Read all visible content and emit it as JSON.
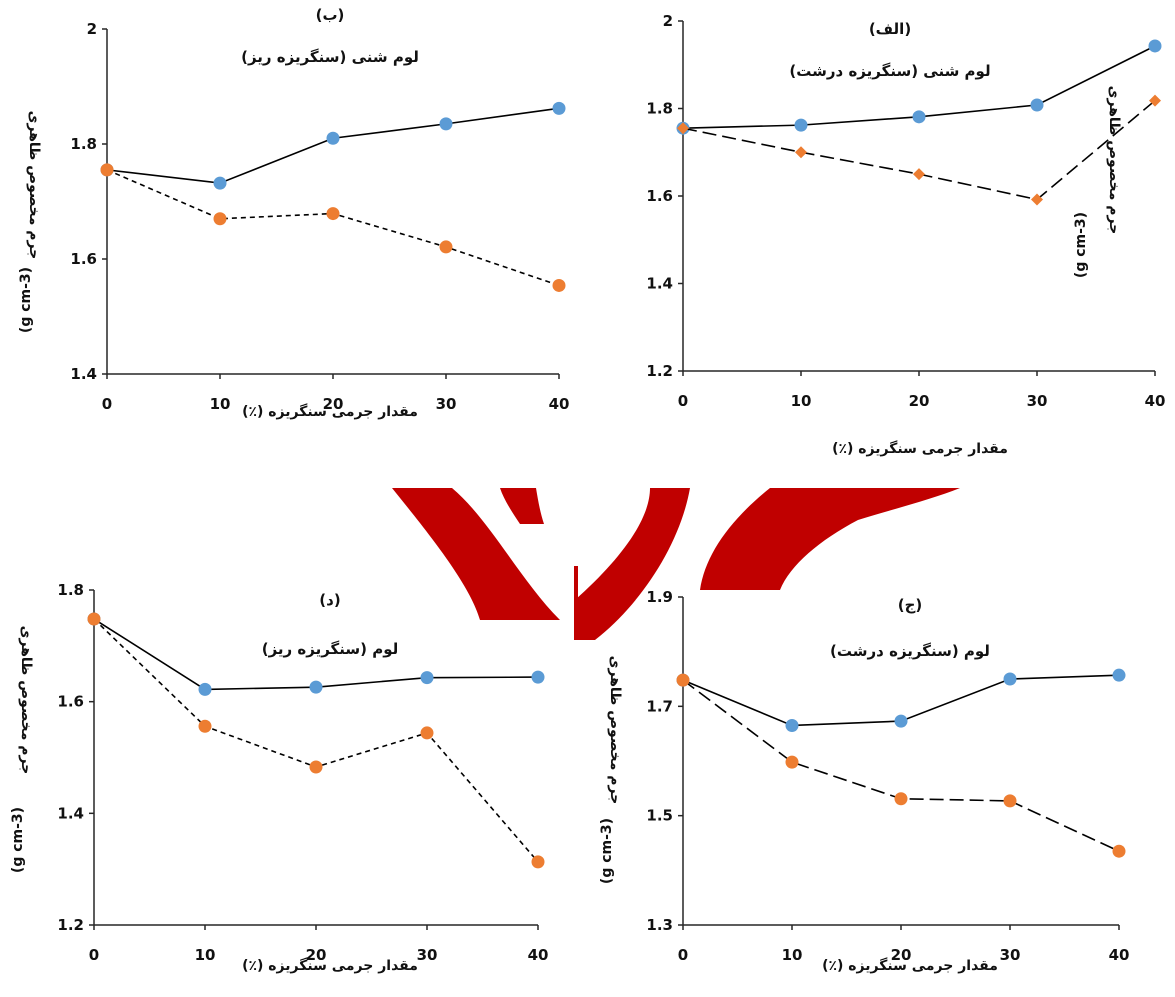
{
  "colors": {
    "solid_series": "#5B9BD5",
    "dashed_series": "#ED7D31",
    "axis": "#262626",
    "line": "#000000",
    "watermark": "#C00000"
  },
  "chart_data": [
    {
      "id": "alef",
      "type": "line",
      "label": "(الف)",
      "title": "لوم شنی (سنگریزه درشت)",
      "xlabel": "مقدار جرمی سنگریزه (٪)",
      "ylabel": "جرم مخصوص ظاهری",
      "ylabel_unit": "(g cm-3)",
      "x": [
        0,
        10,
        20,
        30,
        40
      ],
      "xlim": [
        0,
        40
      ],
      "ylim": [
        1.2,
        2.0
      ],
      "yticks": [
        1.2,
        1.4,
        1.6,
        1.8,
        2
      ],
      "ytick_labels": [
        "1.2",
        "1.4",
        "1.6",
        "1.8",
        "2"
      ],
      "series": [
        {
          "values": [
            1.755,
            1.762,
            1.781,
            1.808,
            1.943
          ],
          "line": "solid",
          "marker": "circle",
          "color": "#5B9BD5"
        },
        {
          "values": [
            1.755,
            1.7,
            1.65,
            1.592,
            1.818
          ],
          "line": "dashed",
          "marker": "diamond",
          "color": "#ED7D31"
        }
      ]
    },
    {
      "id": "be",
      "type": "line",
      "label": "(ب)",
      "title": "لوم شنی (سنگریزه ریز)",
      "xlabel": "مقدار جرمی سنگریزه (٪)",
      "ylabel": "جرم مخصوص ظاهری",
      "ylabel_unit": "(g cm-3)",
      "x": [
        0,
        10,
        20,
        30,
        40
      ],
      "xlim": [
        0,
        40
      ],
      "ylim": [
        1.4,
        2.0
      ],
      "yticks": [
        1.4,
        1.6,
        1.8,
        2
      ],
      "ytick_labels": [
        "1.4",
        "1.6",
        "1.8",
        "2"
      ],
      "series": [
        {
          "values": [
            1.755,
            1.732,
            1.81,
            1.835,
            1.862
          ],
          "line": "solid",
          "marker": "circle",
          "color": "#5B9BD5"
        },
        {
          "values": [
            1.755,
            1.67,
            1.679,
            1.621,
            1.554
          ],
          "line": "dotted",
          "marker": "circle",
          "color": "#ED7D31"
        }
      ]
    },
    {
      "id": "jim",
      "type": "line",
      "label": "(ج)",
      "title": "لوم (سنگریزه درشت)",
      "xlabel": "مقدار جرمی سنگریزه (٪)",
      "ylabel": "جرم مخصوص ظاهری",
      "ylabel_unit": "(g cm-3)",
      "x": [
        0,
        10,
        20,
        30,
        40
      ],
      "xlim": [
        0,
        40
      ],
      "ylim": [
        1.3,
        1.9
      ],
      "yticks": [
        1.3,
        1.5,
        1.7,
        1.9
      ],
      "ytick_labels": [
        "1.3",
        "1.5",
        "1.7",
        "1.9"
      ],
      "series": [
        {
          "values": [
            1.748,
            1.665,
            1.673,
            1.75,
            1.757
          ],
          "line": "solid",
          "marker": "circle",
          "color": "#5B9BD5"
        },
        {
          "values": [
            1.748,
            1.598,
            1.531,
            1.527,
            1.435
          ],
          "line": "dashed",
          "marker": "circle",
          "color": "#ED7D31"
        }
      ]
    },
    {
      "id": "dal",
      "type": "line",
      "label": "(د)",
      "title": "لوم (سنگریزه ریز)",
      "xlabel": "مقدار جرمی سنگریزه (٪)",
      "ylabel": "جرم مخصوص ظاهری",
      "ylabel_unit": "(g cm-3)",
      "x": [
        0,
        10,
        20,
        30,
        40
      ],
      "xlim": [
        0,
        40
      ],
      "ylim": [
        1.2,
        1.8
      ],
      "yticks": [
        1.2,
        1.4,
        1.6,
        1.8
      ],
      "ytick_labels": [
        "1.2",
        "1.4",
        "1.6",
        "1.8"
      ],
      "series": [
        {
          "values": [
            1.748,
            1.622,
            1.626,
            1.643,
            1.644
          ],
          "line": "solid",
          "marker": "circle",
          "color": "#5B9BD5"
        },
        {
          "values": [
            1.748,
            1.556,
            1.483,
            1.544,
            1.313
          ],
          "line": "dotted",
          "marker": "circle",
          "color": "#ED7D31"
        }
      ]
    }
  ]
}
